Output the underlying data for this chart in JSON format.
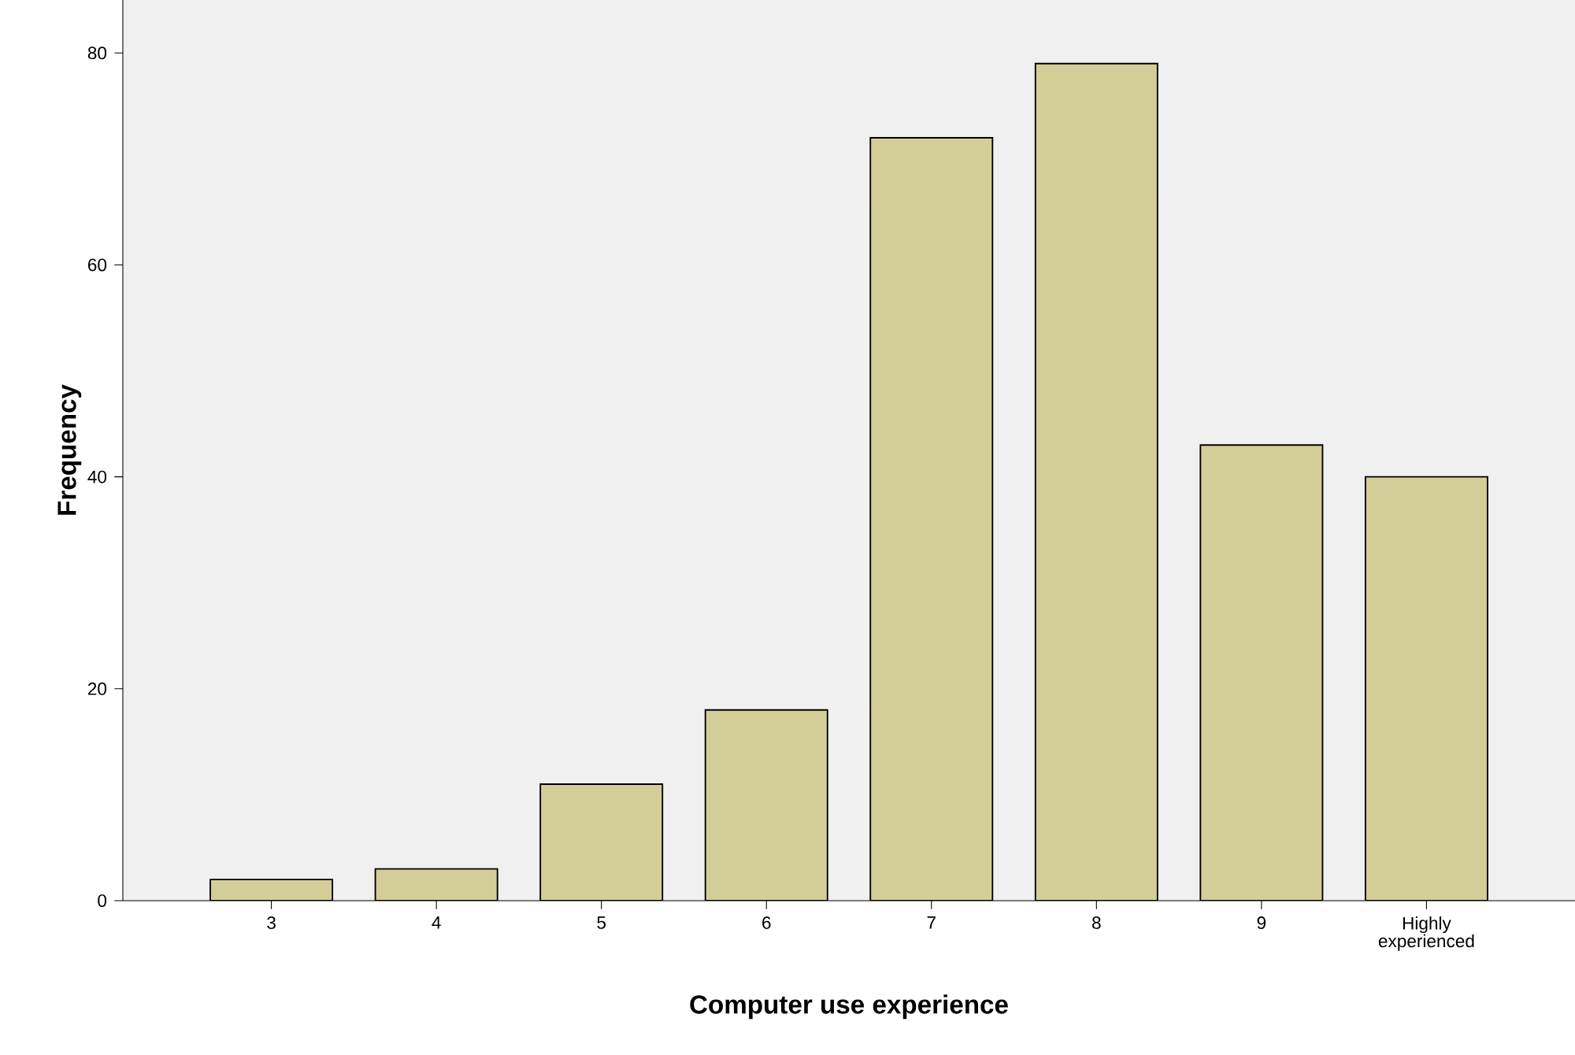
{
  "chart_data": {
    "type": "bar",
    "xlabel": "Computer use experience",
    "ylabel": "Frequency",
    "categories": [
      "3",
      "4",
      "5",
      "6",
      "7",
      "8",
      "9",
      "Highly experienced"
    ],
    "values": [
      2,
      3,
      11,
      18,
      72,
      79,
      43,
      40
    ],
    "color": "#d3ce97",
    "ylim": [
      0,
      85
    ],
    "yticks": [
      0,
      20,
      40,
      60,
      80
    ],
    "grid": false
  }
}
